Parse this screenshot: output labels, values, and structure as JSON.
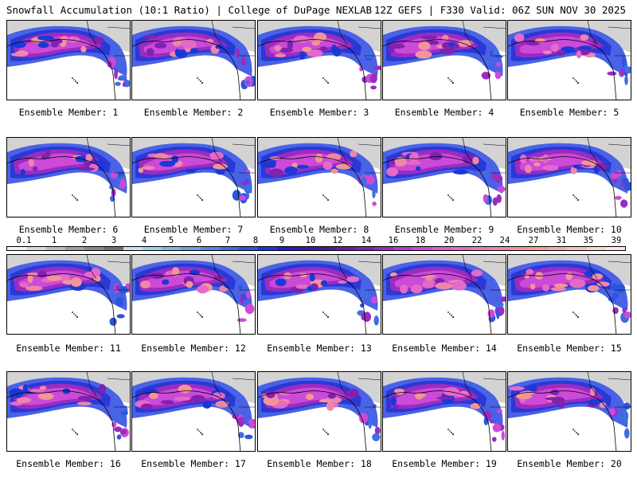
{
  "header": {
    "title": "Snowfall Accumulation (10:1 Ratio) | College of DuPage NEXLAB",
    "run_info": "12Z GEFS | F330 Valid: 06Z SUN NOV 30 2025"
  },
  "colorbar": {
    "tick_labels": [
      "0.1",
      "1",
      "2",
      "3",
      "4",
      "5",
      "6",
      "7",
      "8",
      "9",
      "10",
      "12",
      "14",
      "16",
      "18",
      "20",
      "22",
      "24",
      "27",
      "31",
      "35",
      "39"
    ],
    "colors": [
      "#f2f2f2",
      "#d8d8d8",
      "#bcbcbc",
      "#a0a0a0",
      "#8a8a8a",
      "#707070",
      "#bde6f0",
      "#9ad2ee",
      "#7fb8ec",
      "#6aa0ea",
      "#5486e6",
      "#3f6ee2",
      "#2a55de",
      "#1b38d6",
      "#1e1ec8",
      "#3a1aa8",
      "#521890",
      "#6a1ca0",
      "#8022b0",
      "#9a2cc0",
      "#b43ad0",
      "#cc4ad8",
      "#dc5ad8",
      "#e46ac8",
      "#ea78b8",
      "#ee86a8",
      "#f29498",
      "#f4a08c",
      "#f6b0a0",
      "#f8c2b4",
      "#fad6cc",
      "#fce8e2"
    ]
  },
  "members": [
    {
      "label": "Ensemble Member: 1"
    },
    {
      "label": "Ensemble Member: 2"
    },
    {
      "label": "Ensemble Member: 3"
    },
    {
      "label": "Ensemble Member: 4"
    },
    {
      "label": "Ensemble Member: 5"
    },
    {
      "label": "Ensemble Member: 6"
    },
    {
      "label": "Ensemble Member: 7"
    },
    {
      "label": "Ensemble Member: 8"
    },
    {
      "label": "Ensemble Member: 9"
    },
    {
      "label": "Ensemble Member: 10"
    },
    {
      "label": "Ensemble Member: 11"
    },
    {
      "label": "Ensemble Member: 12"
    },
    {
      "label": "Ensemble Member: 13"
    },
    {
      "label": "Ensemble Member: 14"
    },
    {
      "label": "Ensemble Member: 15"
    },
    {
      "label": "Ensemble Member: 16"
    },
    {
      "label": "Ensemble Member: 17"
    },
    {
      "label": "Ensemble Member: 18"
    },
    {
      "label": "Ensemble Member: 19"
    },
    {
      "label": "Ensemble Member: 20"
    }
  ]
}
